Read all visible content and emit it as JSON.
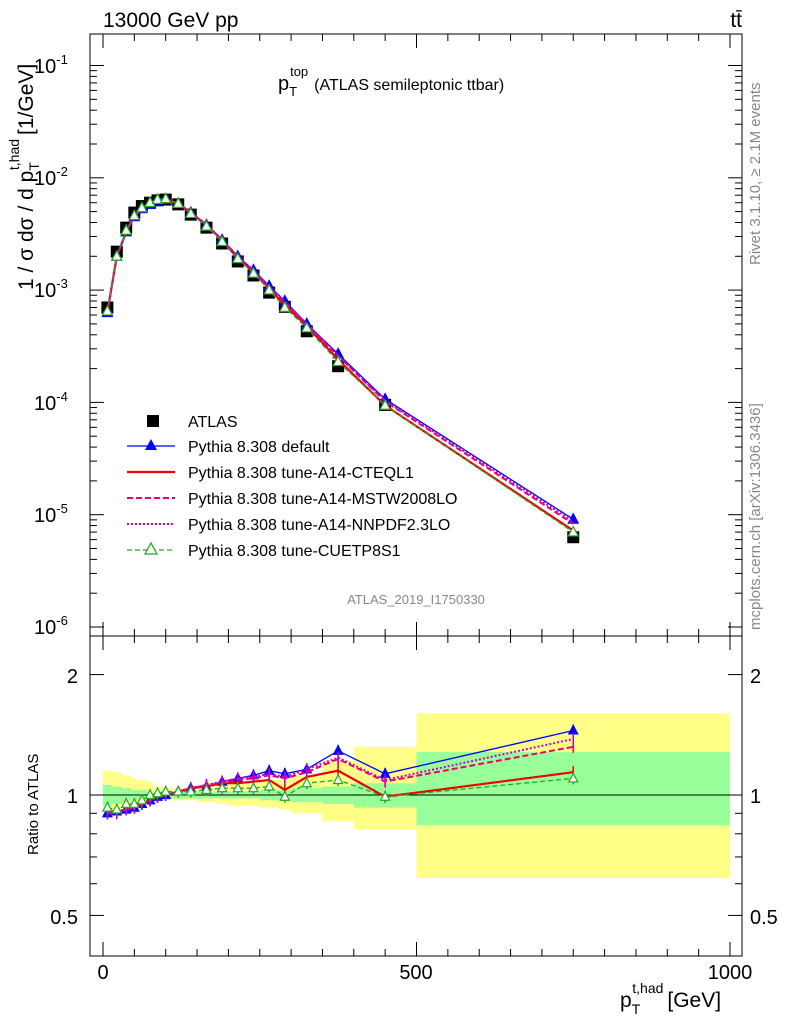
{
  "header": {
    "energy_label": "13000 GeV pp",
    "process_label": "tt̄",
    "rivet_label": "Rivet 3.1.10, ≥ 2.1M events",
    "mcplots_label": "mcplots.cern.ch [arXiv:1306.3436]"
  },
  "chart_data": [
    {
      "type": "scatter",
      "title_main": "p",
      "title_sub": "T",
      "title_sup": "top",
      "title_rest": "(ATLAS semileptonic ttbar)",
      "ylabel": "1 / σ dσ / d p",
      "ylabel_sub": "T",
      "ylabel_sup": "t,had",
      "ylabel_unit": "[1/GeV]",
      "yscale": "log",
      "ylim": [
        6e-07,
        0.2
      ],
      "xlim": [
        -15,
        1000
      ],
      "y_tick_labels": [
        "10",
        "10",
        "10",
        "10",
        "10",
        "10"
      ],
      "y_tick_exponents": [
        "-1",
        "-2",
        "-3",
        "-4",
        "-5",
        "-6"
      ],
      "y_tick_values": [
        0.1,
        0.01,
        0.001,
        0.0001,
        1e-05,
        1e-06
      ],
      "watermark": "ATLAS_2019_I1750330",
      "legend_position": "left-center",
      "x": [
        7,
        22,
        37,
        50,
        62,
        75,
        87,
        100,
        120,
        140,
        165,
        190,
        215,
        240,
        265,
        290,
        325,
        375,
        450,
        750
      ],
      "series": [
        {
          "name": "ATLAS",
          "color": "#000000",
          "marker": "square",
          "values": [
            0.0007,
            0.0022,
            0.0036,
            0.0049,
            0.0056,
            0.006,
            0.0063,
            0.0064,
            0.0058,
            0.0047,
            0.0036,
            0.0026,
            0.0018,
            0.00135,
            0.00095,
            0.00071,
            0.00043,
            0.00021,
            9.5e-05,
            6.3e-06
          ]
        },
        {
          "name": "Pythia 8.308 default",
          "color": "#0000ff",
          "marker": "triangle",
          "values": [
            0.00063,
            0.002,
            0.0033,
            0.0045,
            0.0053,
            0.0058,
            0.0062,
            0.0064,
            0.0059,
            0.0049,
            0.0038,
            0.0028,
            0.002,
            0.00151,
            0.00109,
            0.0008,
            0.0005,
            0.00027,
            0.000107,
            9.1e-06
          ]
        },
        {
          "name": "Pythia 8.308 tune-A14-CTEQL1",
          "color": "#ee0000",
          "dash": "",
          "values": [
            0.00064,
            0.002,
            0.0033,
            0.0045,
            0.0053,
            0.0058,
            0.0062,
            0.0064,
            0.0059,
            0.0049,
            0.0038,
            0.0028,
            0.0019,
            0.00145,
            0.00104,
            0.00073,
            0.00048,
            0.00024,
            9.4e-05,
            7.2e-06
          ]
        },
        {
          "name": "Pythia 8.308 tune-A14-MSTW2008LO",
          "color": "#ee0066",
          "dash": "6,3",
          "values": [
            0.00063,
            0.002,
            0.0033,
            0.0045,
            0.0053,
            0.0058,
            0.0062,
            0.0064,
            0.0059,
            0.0049,
            0.0038,
            0.0028,
            0.002,
            0.00148,
            0.00106,
            0.00078,
            0.00049,
            0.00026,
            0.000102,
            8.3e-06
          ]
        },
        {
          "name": "Pythia 8.308 tune-A14-NNPDF2.3LO",
          "color": "#cc00cc",
          "dash": "2,2",
          "values": [
            0.00063,
            0.002,
            0.0033,
            0.0045,
            0.0053,
            0.0058,
            0.0062,
            0.0064,
            0.0059,
            0.0049,
            0.0038,
            0.0028,
            0.002,
            0.00149,
            0.00107,
            0.00079,
            0.0005,
            0.00026,
            0.000104,
            8.7e-06
          ]
        },
        {
          "name": "Pythia 8.308 tune-CUETP8S1",
          "color": "#22aa22",
          "dash": "5,3",
          "marker": "open-triangle",
          "values": [
            0.00065,
            0.002,
            0.0034,
            0.0046,
            0.0054,
            0.006,
            0.0064,
            0.0065,
            0.0059,
            0.0048,
            0.0037,
            0.0027,
            0.0019,
            0.00141,
            0.001,
            0.0007,
            0.00046,
            0.00023,
            9.4e-05,
            7e-06
          ]
        }
      ]
    },
    {
      "type": "line",
      "ylabel": "Ratio to ATLAS",
      "xlabel": "p",
      "xlabel_sub": "T",
      "xlabel_sup": "t,had",
      "xlabel_unit": "[GeV]",
      "xlim": [
        -15,
        1000
      ],
      "ylim": [
        0.4,
        2.5
      ],
      "yscale": "log",
      "x_tick_labels": [
        "0",
        "500",
        "1000"
      ],
      "y_tick_labels": [
        "2",
        "1",
        "0.5"
      ],
      "bins": [
        [
          0,
          15
        ],
        [
          15,
          30
        ],
        [
          30,
          45
        ],
        [
          45,
          55
        ],
        [
          55,
          70
        ],
        [
          70,
          80
        ],
        [
          80,
          95
        ],
        [
          95,
          110
        ],
        [
          110,
          130
        ],
        [
          130,
          150
        ],
        [
          150,
          180
        ],
        [
          180,
          200
        ],
        [
          200,
          230
        ],
        [
          230,
          250
        ],
        [
          250,
          280
        ],
        [
          280,
          300
        ],
        [
          300,
          350
        ],
        [
          350,
          400
        ],
        [
          400,
          500
        ],
        [
          500,
          1000
        ]
      ],
      "band_stat": [
        [
          0.94,
          1.06
        ],
        [
          0.95,
          1.05
        ],
        [
          0.96,
          1.04
        ],
        [
          0.97,
          1.03
        ],
        [
          0.97,
          1.03
        ],
        [
          0.98,
          1.02
        ],
        [
          0.98,
          1.02
        ],
        [
          0.98,
          1.02
        ],
        [
          0.98,
          1.02
        ],
        [
          0.98,
          1.02
        ],
        [
          0.98,
          1.02
        ],
        [
          0.98,
          1.02
        ],
        [
          0.98,
          1.02
        ],
        [
          0.98,
          1.02
        ],
        [
          0.97,
          1.03
        ],
        [
          0.97,
          1.03
        ],
        [
          0.96,
          1.04
        ],
        [
          0.95,
          1.05
        ],
        [
          0.93,
          1.07
        ],
        [
          0.84,
          1.28
        ]
      ],
      "band_total": [
        [
          0.92,
          1.15
        ],
        [
          0.92,
          1.14
        ],
        [
          0.93,
          1.12
        ],
        [
          0.94,
          1.1
        ],
        [
          0.95,
          1.09
        ],
        [
          0.96,
          1.08
        ],
        [
          0.97,
          1.05
        ],
        [
          0.97,
          1.04
        ],
        [
          0.97,
          1.04
        ],
        [
          0.97,
          1.04
        ],
        [
          0.96,
          1.05
        ],
        [
          0.95,
          1.06
        ],
        [
          0.94,
          1.07
        ],
        [
          0.94,
          1.08
        ],
        [
          0.93,
          1.09
        ],
        [
          0.92,
          1.1
        ],
        [
          0.9,
          1.12
        ],
        [
          0.86,
          1.22
        ],
        [
          0.82,
          1.32
        ],
        [
          0.62,
          1.6
        ]
      ],
      "series": [
        {
          "name": "Pythia 8.308 default",
          "color": "#0000ff",
          "marker": "triangle",
          "values": [
            0.9,
            0.91,
            0.92,
            0.93,
            0.95,
            0.97,
            0.99,
            1.0,
            1.02,
            1.04,
            1.05,
            1.08,
            1.1,
            1.12,
            1.15,
            1.13,
            1.16,
            1.29,
            1.13,
            1.45
          ]
        },
        {
          "name": "Pythia 8.308 tune-A14-CTEQL1",
          "color": "#ee0000",
          "dash": "",
          "values": [
            0.91,
            0.91,
            0.92,
            0.93,
            0.95,
            0.97,
            0.99,
            1.0,
            1.02,
            1.04,
            1.05,
            1.07,
            1.07,
            1.08,
            1.09,
            1.03,
            1.11,
            1.15,
            0.99,
            1.14
          ]
        },
        {
          "name": "Pythia 8.308 tune-A14-MSTW2008LO",
          "color": "#ee0066",
          "dash": "6,3",
          "values": [
            0.9,
            0.9,
            0.92,
            0.93,
            0.95,
            0.97,
            0.99,
            1.0,
            1.02,
            1.04,
            1.06,
            1.07,
            1.09,
            1.1,
            1.12,
            1.1,
            1.14,
            1.23,
            1.08,
            1.32
          ]
        },
        {
          "name": "Pythia 8.308 tune-A14-NNPDF2.3LO",
          "color": "#cc00cc",
          "dash": "2,2",
          "values": [
            0.9,
            0.91,
            0.92,
            0.93,
            0.95,
            0.97,
            0.99,
            1.0,
            1.02,
            1.04,
            1.06,
            1.08,
            1.1,
            1.11,
            1.13,
            1.11,
            1.16,
            1.24,
            1.09,
            1.38
          ]
        },
        {
          "name": "Pythia 8.308 tune-CUETP8S1",
          "color": "#22aa22",
          "dash": "5,3",
          "marker": "open-triangle",
          "values": [
            0.93,
            0.92,
            0.95,
            0.95,
            0.97,
            1.0,
            1.01,
            1.02,
            1.02,
            1.02,
            1.03,
            1.04,
            1.04,
            1.04,
            1.05,
            0.99,
            1.07,
            1.09,
            0.99,
            1.1
          ]
        }
      ]
    }
  ]
}
